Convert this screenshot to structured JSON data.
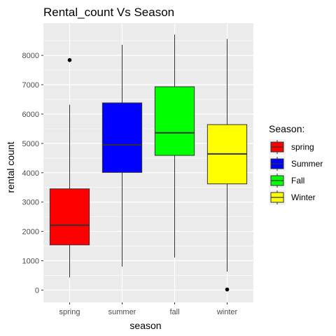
{
  "chart_data": {
    "type": "boxplot",
    "title": "Rental_count Vs Season",
    "xlabel": "season",
    "ylabel": "rental count",
    "ylim": [
      -420,
      9100
    ],
    "yticks": [
      0,
      1000,
      2000,
      3000,
      4000,
      5000,
      6000,
      7000,
      8000
    ],
    "grid": true,
    "legend_title": "Season:",
    "legend_position": "right",
    "categories": [
      "spring",
      "summer",
      "fall",
      "winter"
    ],
    "legend_labels": [
      "spring",
      "Summer",
      "Fall",
      "Winter"
    ],
    "colors": [
      "#ff0000",
      "#0000ff",
      "#00ff00",
      "#ffff00"
    ],
    "boxes": [
      {
        "min": 430,
        "q1": 1540,
        "median": 2210,
        "q3": 3450,
        "max": 6320,
        "outliers": [
          7840
        ]
      },
      {
        "min": 800,
        "q1": 4010,
        "median": 4950,
        "q3": 6380,
        "max": 8360,
        "outliers": []
      },
      {
        "min": 1110,
        "q1": 4590,
        "median": 5360,
        "q3": 6930,
        "max": 8710,
        "outliers": []
      },
      {
        "min": 630,
        "q1": 3620,
        "median": 4640,
        "q3": 5640,
        "max": 8560,
        "outliers": [
          20
        ]
      }
    ]
  }
}
